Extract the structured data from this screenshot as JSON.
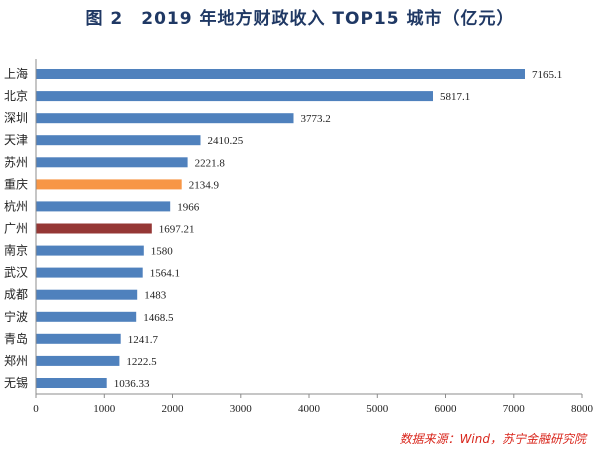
{
  "chart_data": {
    "type": "bar",
    "orientation": "horizontal",
    "title": "图 2　2019 年地方财政收入 TOP15 城市（亿元）",
    "categories": [
      "上海",
      "北京",
      "深圳",
      "天津",
      "苏州",
      "重庆",
      "杭州",
      "广州",
      "南京",
      "武汉",
      "成都",
      "宁波",
      "青岛",
      "郑州",
      "无锡"
    ],
    "values": [
      7165.1,
      5817.1,
      3773.2,
      2410.25,
      2221.8,
      2134.9,
      1966,
      1697.21,
      1580,
      1564.1,
      1483,
      1468.5,
      1241.7,
      1222.5,
      1036.33
    ],
    "value_labels": [
      "7165.1",
      "5817.1",
      "3773.2",
      "2410.25",
      "2221.8",
      "2134.9",
      "1966",
      "1697.21",
      "1580",
      "1564.1",
      "1483",
      "1468.5",
      "1241.7",
      "1222.5",
      "1036.33"
    ],
    "xlim": [
      0,
      8000
    ],
    "xticks": [
      0,
      1000,
      2000,
      3000,
      4000,
      5000,
      6000,
      7000,
      8000
    ],
    "grid": false,
    "colors": {
      "default": "#4f81bd",
      "highlight_orange": "#f79646",
      "highlight_red": "#953735",
      "title": "#1f3864",
      "source": "#d9261c"
    },
    "highlights": {
      "重庆": "highlight_orange",
      "广州": "highlight_red"
    }
  },
  "source": "数据来源：Wind，苏宁金融研究院"
}
